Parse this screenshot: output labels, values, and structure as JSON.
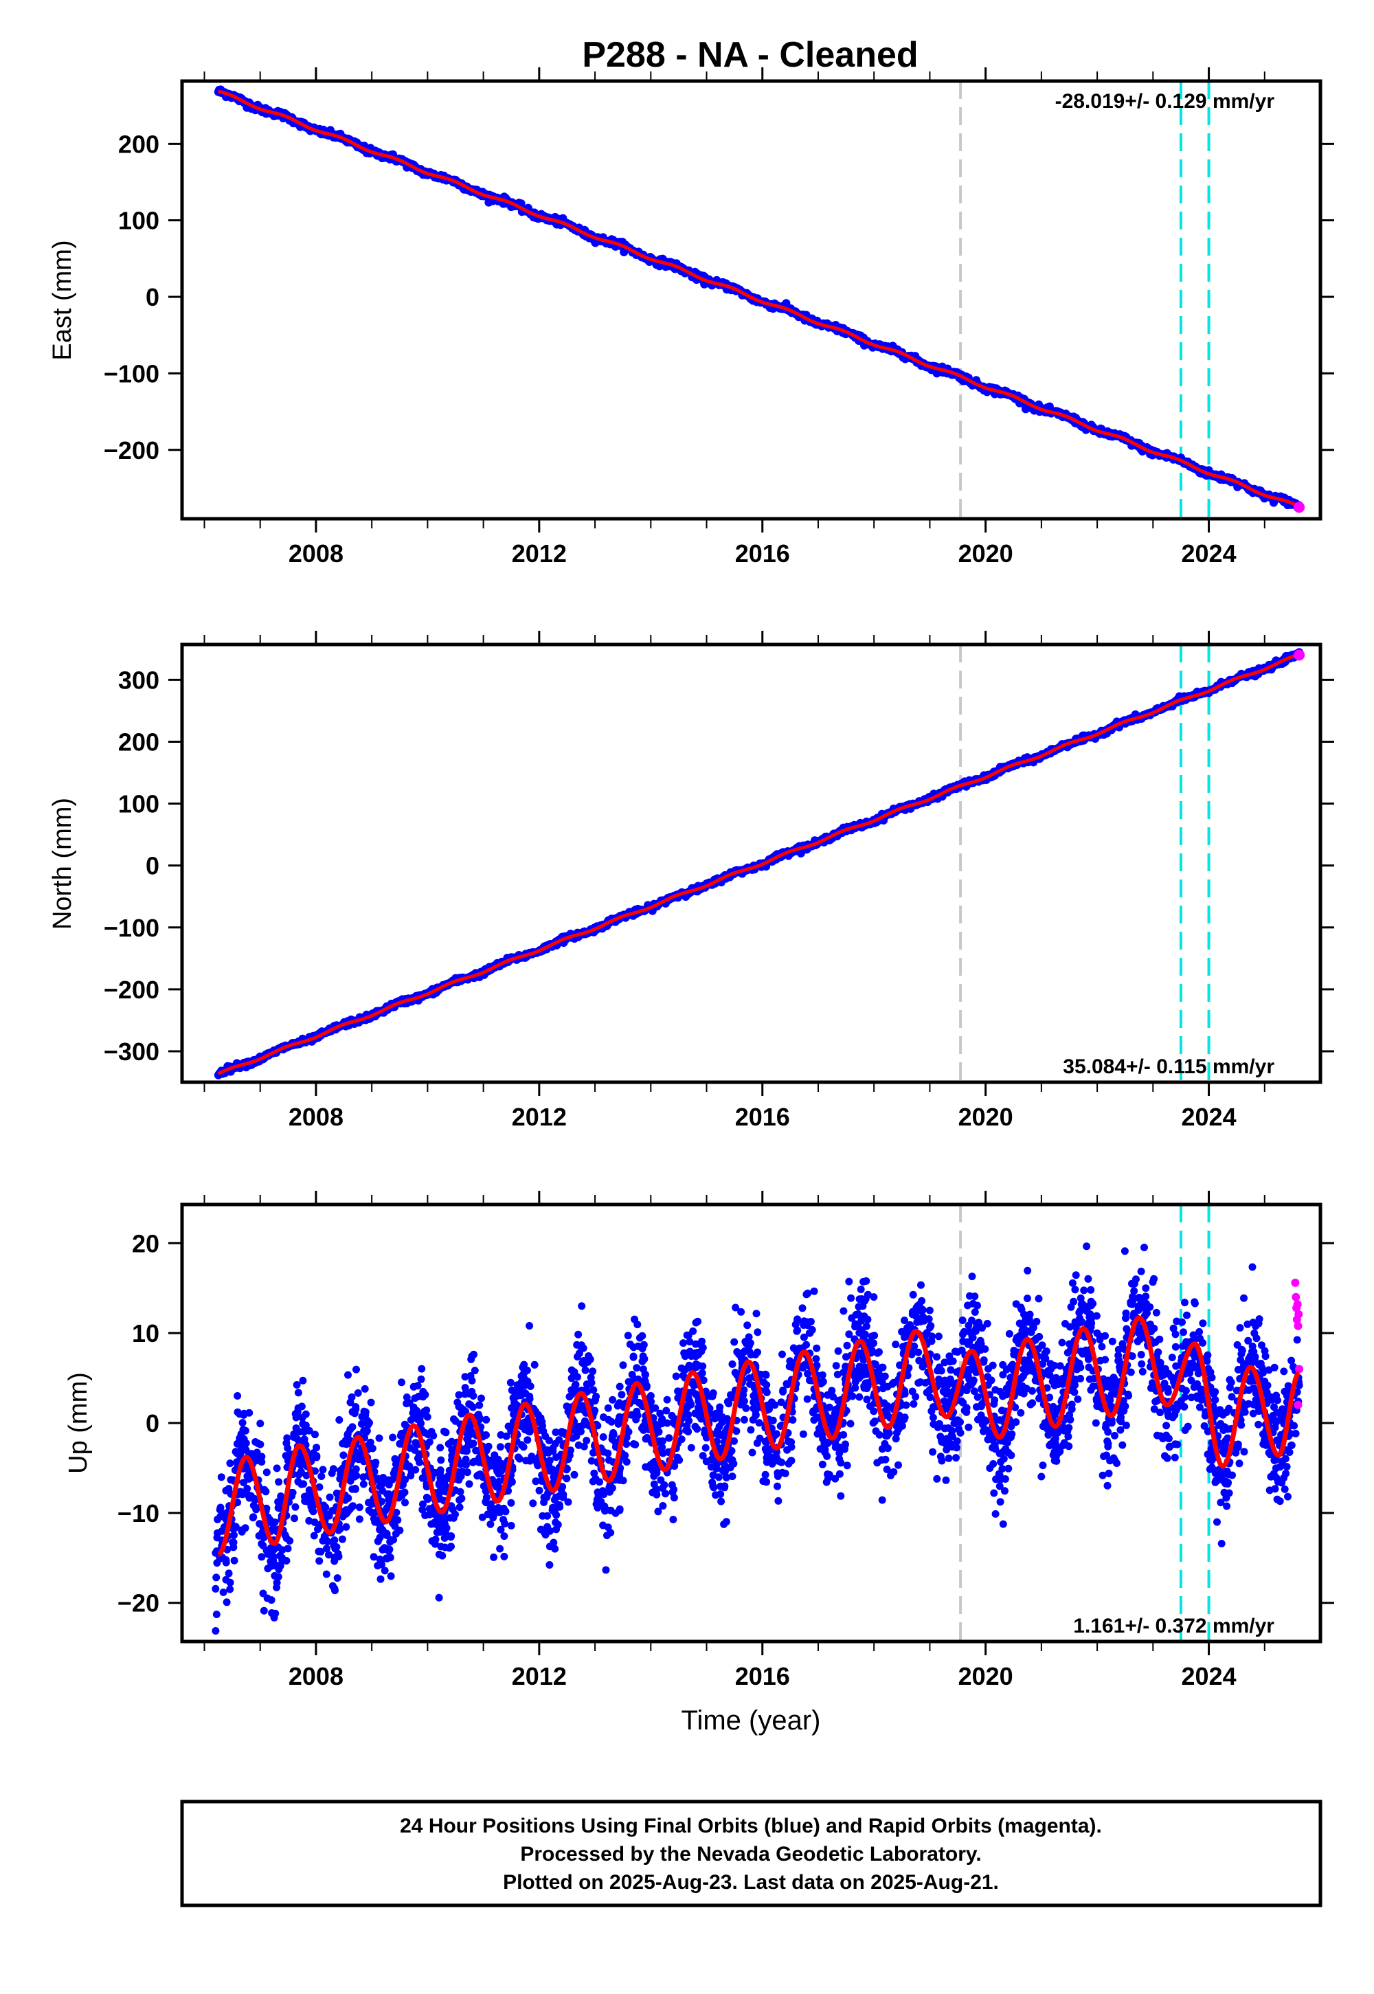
{
  "title": "P288  - NA - Cleaned",
  "colors": {
    "final_orbits": "#0000ff",
    "rapid_orbits": "#ff00ff",
    "model_fit": "#ff0000",
    "equipment_change": "#c8c8c8",
    "other_event": "#00e5e5"
  },
  "chart_data": [
    {
      "type": "scatter",
      "component": "east",
      "ylabel": "East (mm)",
      "xlabel": "",
      "xlim": [
        2005.6,
        2026.0
      ],
      "ylim": [
        -290,
        282
      ],
      "xticks": [
        "2008",
        "2012",
        "2016",
        "2020",
        "2024"
      ],
      "yticks": [
        "200",
        "100",
        "0",
        "−100",
        "−200"
      ],
      "rate_label": "-28.019+/- 0.129 mm/yr",
      "trend": {
        "x0": 2006.25,
        "y0": 268,
        "x1": 2025.62,
        "y1": -275
      },
      "vlines": [
        {
          "x": 2019.55,
          "kind": "equipment_change"
        },
        {
          "x": 2023.5,
          "kind": "other_event"
        },
        {
          "x": 2024.0,
          "kind": "other_event"
        }
      ],
      "grid": false
    },
    {
      "type": "scatter",
      "component": "north",
      "ylabel": "North (mm)",
      "xlabel": "",
      "xlim": [
        2005.6,
        2026.0
      ],
      "ylim": [
        -350,
        357
      ],
      "xticks": [
        "2008",
        "2012",
        "2016",
        "2020",
        "2024"
      ],
      "yticks": [
        "300",
        "200",
        "100",
        "0",
        "−100",
        "−200",
        "−300"
      ],
      "rate_label": "35.084+/- 0.115 mm/yr",
      "trend": {
        "x0": 2006.25,
        "y0": -337,
        "x1": 2025.62,
        "y1": 340
      },
      "vlines": [
        {
          "x": 2019.55,
          "kind": "equipment_change"
        },
        {
          "x": 2023.5,
          "kind": "other_event"
        },
        {
          "x": 2024.0,
          "kind": "other_event"
        }
      ],
      "grid": false
    },
    {
      "type": "scatter",
      "component": "up",
      "ylabel": "Up (mm)",
      "xlabel": "Time (year)",
      "xlim": [
        2005.6,
        2026.0
      ],
      "ylim": [
        -24.3,
        24.3
      ],
      "xticks": [
        "2008",
        "2012",
        "2016",
        "2020",
        "2024"
      ],
      "yticks": [
        "20",
        "10",
        "0",
        "−10",
        "−20"
      ],
      "rate_label": "1.161+/- 0.372 mm/yr",
      "model": {
        "seasonal_peaks": [
          [
            2006.75,
            -3.8
          ],
          [
            2007.7,
            -2.5
          ],
          [
            2008.75,
            -1.6
          ],
          [
            2009.75,
            -0.3
          ],
          [
            2010.75,
            0.9
          ],
          [
            2011.75,
            2.1
          ],
          [
            2012.75,
            3.3
          ],
          [
            2013.75,
            4.4
          ],
          [
            2014.75,
            5.6
          ],
          [
            2015.75,
            6.8
          ],
          [
            2016.75,
            7.9
          ],
          [
            2017.75,
            9.1
          ],
          [
            2018.75,
            10.2
          ],
          [
            2019.75,
            8.0
          ],
          [
            2020.75,
            9.3
          ],
          [
            2021.75,
            10.5
          ],
          [
            2022.75,
            11.7
          ],
          [
            2023.75,
            8.8
          ],
          [
            2024.75,
            6.2
          ]
        ],
        "seasonal_troughs": [
          [
            2006.25,
            -14.6
          ],
          [
            2007.25,
            -13.4
          ],
          [
            2008.25,
            -12.2
          ],
          [
            2009.25,
            -11.0
          ],
          [
            2010.25,
            -9.9
          ],
          [
            2011.25,
            -8.7
          ],
          [
            2012.25,
            -7.5
          ],
          [
            2013.25,
            -6.4
          ],
          [
            2014.25,
            -5.2
          ],
          [
            2015.25,
            -4.0
          ],
          [
            2016.25,
            -2.8
          ],
          [
            2017.25,
            -1.7
          ],
          [
            2018.25,
            -0.5
          ],
          [
            2019.3,
            0.7
          ],
          [
            2020.25,
            -1.6
          ],
          [
            2021.25,
            -0.4
          ],
          [
            2022.25,
            0.8
          ],
          [
            2023.25,
            2.0
          ],
          [
            2024.25,
            -4.8
          ],
          [
            2025.25,
            -3.6
          ]
        ],
        "last_point": [
          2025.62,
          5.6
        ]
      },
      "rapid_orbit_points": [
        [
          2025.55,
          15.6
        ],
        [
          2025.56,
          14.0
        ],
        [
          2025.57,
          12.8
        ],
        [
          2025.58,
          11.5
        ],
        [
          2025.59,
          13.2
        ],
        [
          2025.6,
          10.8
        ],
        [
          2025.61,
          12.1
        ],
        [
          2025.62,
          6.0
        ],
        [
          2025.6,
          2.0
        ]
      ],
      "vlines": [
        {
          "x": 2019.55,
          "kind": "equipment_change"
        },
        {
          "x": 2023.5,
          "kind": "other_event"
        },
        {
          "x": 2024.0,
          "kind": "other_event"
        }
      ],
      "grid": false
    }
  ],
  "footer": {
    "line1": "24 Hour Positions Using Final Orbits (blue) and Rapid Orbits (magenta).",
    "line2": "Processed by the Nevada Geodetic Laboratory.",
    "line3": "Plotted on 2025-Aug-23. Last data on 2025-Aug-21."
  }
}
